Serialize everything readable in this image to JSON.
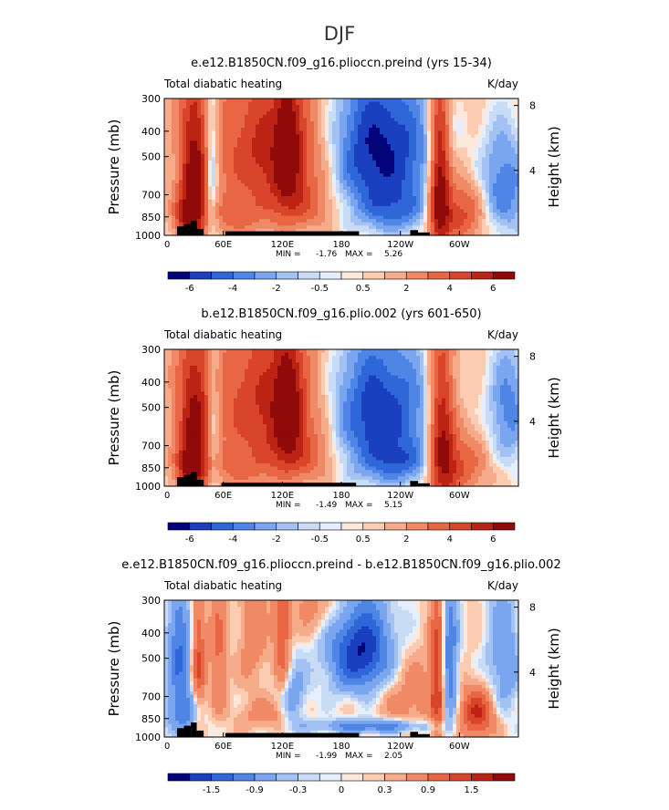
{
  "figure_title": "DJF",
  "chart_data": [
    {
      "type": "heatmap",
      "title": "e.e12.B1850CN.f09_g16.plioccn.preind (yrs 15-34)",
      "left_label": "Total diabatic heating",
      "right_label": "K/day",
      "ylabel": "Pressure (mb)",
      "ylabel_right": "Height (km)",
      "x_ticks": [
        "0",
        "60E",
        "120E",
        "180",
        "120W",
        "60W"
      ],
      "x_tick_values": [
        0,
        60,
        120,
        180,
        240,
        300
      ],
      "xlim": [
        0,
        360
      ],
      "y_ticks": [
        "300",
        "400",
        "500",
        "700",
        "850",
        "1000"
      ],
      "y_tick_values": [
        300,
        400,
        500,
        700,
        850,
        1000
      ],
      "ylim": [
        1000,
        300
      ],
      "right_ticks": [
        "8",
        "4"
      ],
      "right_tick_values": [
        8,
        4
      ],
      "stats": {
        "min_label": "MIN =",
        "min": "-1.76",
        "max_label": "MAX =",
        "max": "5.26"
      },
      "colorbar_labels": [
        "-6",
        "-4",
        "-2",
        "-0.5",
        "0.5",
        "2",
        "4",
        "6"
      ],
      "colorbar_colors": [
        "#04047a",
        "#1a3fbf",
        "#2f66d8",
        "#4f86e6",
        "#7aa6ef",
        "#a3c2f3",
        "#c8dcf6",
        "#e6efff",
        "#fde8dc",
        "#fbcbb2",
        "#f6ab8a",
        "#f08a66",
        "#e96645",
        "#d9452a",
        "#bd2314",
        "#8f0a08"
      ],
      "field": {
        "base": 0.15,
        "base_slope": 0.2,
        "blobs": [
          {
            "x": 30,
            "p": 620,
            "sx": 10,
            "sp": 300,
            "a": 2.6
          },
          {
            "x": 22,
            "p": 850,
            "sx": 9,
            "sp": 110,
            "a": 1.4
          },
          {
            "x": 115,
            "p": 490,
            "sx": 42,
            "sp": 210,
            "a": 2.1
          },
          {
            "x": 125,
            "p": 480,
            "sx": 8,
            "sp": 160,
            "a": 2.3
          },
          {
            "x": 140,
            "p": 780,
            "sx": 22,
            "sp": 120,
            "a": 1.0
          },
          {
            "x": 215,
            "p": 470,
            "sx": 42,
            "sp": 230,
            "a": -2.3
          },
          {
            "x": 235,
            "p": 820,
            "sx": 25,
            "sp": 110,
            "a": -0.9
          },
          {
            "x": 280,
            "p": 650,
            "sx": 7,
            "sp": 330,
            "a": 3.0
          },
          {
            "x": 300,
            "p": 820,
            "sx": 18,
            "sp": 160,
            "a": 1.6
          },
          {
            "x": 345,
            "p": 650,
            "sx": 18,
            "sp": 220,
            "a": -1.3
          },
          {
            "x": 48,
            "p": 550,
            "sx": 5,
            "sp": 300,
            "a": -1.4
          },
          {
            "x": 70,
            "p": 860,
            "sx": 25,
            "sp": 100,
            "a": 0.8
          }
        ]
      }
    },
    {
      "type": "heatmap",
      "title": "b.e12.B1850CN.f09_g16.plio.002 (yrs 601-650)",
      "left_label": "Total diabatic heating",
      "right_label": "K/day",
      "ylabel": "Pressure (mb)",
      "ylabel_right": "Height (km)",
      "x_ticks": [
        "0",
        "60E",
        "120E",
        "180",
        "120W",
        "60W"
      ],
      "x_tick_values": [
        0,
        60,
        120,
        180,
        240,
        300
      ],
      "xlim": [
        0,
        360
      ],
      "y_ticks": [
        "300",
        "400",
        "500",
        "700",
        "850",
        "1000"
      ],
      "y_tick_values": [
        300,
        400,
        500,
        700,
        850,
        1000
      ],
      "ylim": [
        1000,
        300
      ],
      "right_ticks": [
        "8",
        "4"
      ],
      "right_tick_values": [
        8,
        4
      ],
      "stats": {
        "min_label": "MIN =",
        "min": "-1.49",
        "max_label": "MAX =",
        "max": "5.15"
      },
      "colorbar_labels": [
        "-6",
        "-4",
        "-2",
        "-0.5",
        "0.5",
        "2",
        "4",
        "6"
      ],
      "colorbar_colors": [
        "#04047a",
        "#1a3fbf",
        "#2f66d8",
        "#4f86e6",
        "#7aa6ef",
        "#a3c2f3",
        "#c8dcf6",
        "#e6efff",
        "#fde8dc",
        "#fbcbb2",
        "#f6ab8a",
        "#f08a66",
        "#e96645",
        "#d9452a",
        "#bd2314",
        "#8f0a08"
      ],
      "field": {
        "base": 0.15,
        "base_slope": 0.2,
        "blobs": [
          {
            "x": 30,
            "p": 640,
            "sx": 11,
            "sp": 300,
            "a": 2.5
          },
          {
            "x": 25,
            "p": 860,
            "sx": 10,
            "sp": 110,
            "a": 1.3
          },
          {
            "x": 110,
            "p": 500,
            "sx": 42,
            "sp": 220,
            "a": 1.9
          },
          {
            "x": 125,
            "p": 500,
            "sx": 9,
            "sp": 170,
            "a": 2.2
          },
          {
            "x": 140,
            "p": 780,
            "sx": 24,
            "sp": 130,
            "a": 1.1
          },
          {
            "x": 215,
            "p": 520,
            "sx": 42,
            "sp": 250,
            "a": -2.0
          },
          {
            "x": 240,
            "p": 830,
            "sx": 25,
            "sp": 100,
            "a": -0.8
          },
          {
            "x": 282,
            "p": 650,
            "sx": 9,
            "sp": 330,
            "a": 2.6
          },
          {
            "x": 300,
            "p": 830,
            "sx": 18,
            "sp": 160,
            "a": 1.4
          },
          {
            "x": 350,
            "p": 500,
            "sx": 15,
            "sp": 200,
            "a": -1.2
          },
          {
            "x": 50,
            "p": 550,
            "sx": 5,
            "sp": 300,
            "a": -1.0
          },
          {
            "x": 75,
            "p": 870,
            "sx": 25,
            "sp": 100,
            "a": 0.7
          }
        ]
      }
    },
    {
      "type": "heatmap",
      "title": "e.e12.B1850CN.f09_g16.plioccn.preind - b.e12.B1850CN.f09_g16.plio.002",
      "left_label": "Total diabatic heating",
      "right_label": "K/day",
      "ylabel": "Pressure (mb)",
      "ylabel_right": "Height (km)",
      "x_ticks": [
        "0",
        "60E",
        "120E",
        "180",
        "120W",
        "60W"
      ],
      "x_tick_values": [
        0,
        60,
        120,
        180,
        240,
        300
      ],
      "xlim": [
        0,
        360
      ],
      "y_ticks": [
        "300",
        "400",
        "500",
        "700",
        "850",
        "1000"
      ],
      "y_tick_values": [
        300,
        400,
        500,
        700,
        850,
        1000
      ],
      "ylim": [
        1000,
        300
      ],
      "right_ticks": [
        "8",
        "4"
      ],
      "right_tick_values": [
        8,
        4
      ],
      "stats": {
        "min_label": "MIN =",
        "min": "-1.99",
        "max_label": "MAX =",
        "max": "2.05"
      },
      "colorbar_labels": [
        "-1.5",
        "-0.9",
        "-0.3",
        "0",
        "0.3",
        "0.9",
        "1.5"
      ],
      "colorbar_colors": [
        "#04047a",
        "#1a3fbf",
        "#2f66d8",
        "#4f86e6",
        "#7aa6ef",
        "#a3c2f3",
        "#c8dcf6",
        "#e6efff",
        "#fde8dc",
        "#fbcbb2",
        "#f6ab8a",
        "#f08a66",
        "#e96645",
        "#d9452a",
        "#bd2314",
        "#8f0a08"
      ],
      "field": {
        "base": 0.05,
        "base_slope": 0.0,
        "blobs": [
          {
            "x": 15,
            "p": 450,
            "sx": 8,
            "sp": 160,
            "a": -1.0
          },
          {
            "x": 35,
            "p": 520,
            "sx": 5,
            "sp": 220,
            "a": 0.9
          },
          {
            "x": 20,
            "p": 800,
            "sx": 12,
            "sp": 120,
            "a": -0.8
          },
          {
            "x": 55,
            "p": 500,
            "sx": 6,
            "sp": 220,
            "a": 0.6
          },
          {
            "x": 90,
            "p": 400,
            "sx": 10,
            "sp": 150,
            "a": 0.5
          },
          {
            "x": 120,
            "p": 380,
            "sx": 6,
            "sp": 200,
            "a": 0.9
          },
          {
            "x": 130,
            "p": 720,
            "sx": 10,
            "sp": 150,
            "a": -0.6
          },
          {
            "x": 105,
            "p": 820,
            "sx": 20,
            "sp": 80,
            "a": 0.4
          },
          {
            "x": 200,
            "p": 470,
            "sx": 22,
            "sp": 130,
            "a": -1.6
          },
          {
            "x": 215,
            "p": 910,
            "sx": 40,
            "sp": 40,
            "a": -0.9
          },
          {
            "x": 250,
            "p": 700,
            "sx": 25,
            "sp": 180,
            "a": 0.4
          },
          {
            "x": 278,
            "p": 600,
            "sx": 5,
            "sp": 300,
            "a": 1.0
          },
          {
            "x": 290,
            "p": 550,
            "sx": 6,
            "sp": 250,
            "a": -1.0
          },
          {
            "x": 318,
            "p": 820,
            "sx": 12,
            "sp": 120,
            "a": 1.2
          },
          {
            "x": 345,
            "p": 500,
            "sx": 12,
            "sp": 200,
            "a": -0.6
          },
          {
            "x": 160,
            "p": 320,
            "sx": 20,
            "sp": 60,
            "a": 0.4
          }
        ]
      }
    }
  ]
}
